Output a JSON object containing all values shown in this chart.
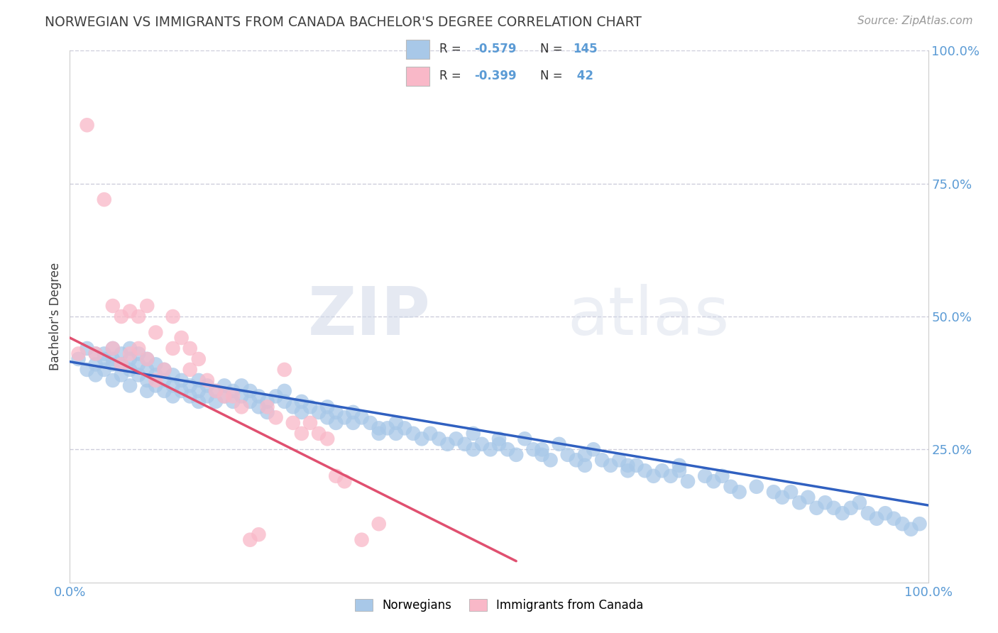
{
  "title": "NORWEGIAN VS IMMIGRANTS FROM CANADA BACHELOR'S DEGREE CORRELATION CHART",
  "source": "Source: ZipAtlas.com",
  "ylabel": "Bachelor's Degree",
  "legend_label1": "Norwegians",
  "legend_label2": "Immigrants from Canada",
  "watermark_zip": "ZIP",
  "watermark_atlas": "atlas",
  "blue_color": "#a8c8e8",
  "pink_color": "#f9b8c8",
  "line_blue": "#3060c0",
  "line_pink": "#e05070",
  "background": "#ffffff",
  "grid_color": "#c8c8d8",
  "title_color": "#404040",
  "axis_label_color": "#5b9bd5",
  "legend_text_color": "#333333",
  "source_color": "#999999",
  "xlim": [
    0.0,
    1.0
  ],
  "ylim": [
    0.0,
    1.0
  ],
  "yticks": [
    0.25,
    0.5,
    0.75,
    1.0
  ],
  "ytick_labels": [
    "25.0%",
    "50.0%",
    "75.0%",
    "100.0%"
  ],
  "xtick_positions": [
    0.0,
    1.0
  ],
  "xtick_labels": [
    "0.0%",
    "100.0%"
  ],
  "nor_x": [
    0.01,
    0.02,
    0.02,
    0.03,
    0.03,
    0.03,
    0.04,
    0.04,
    0.04,
    0.05,
    0.05,
    0.05,
    0.05,
    0.06,
    0.06,
    0.06,
    0.07,
    0.07,
    0.07,
    0.07,
    0.08,
    0.08,
    0.08,
    0.09,
    0.09,
    0.09,
    0.09,
    0.1,
    0.1,
    0.1,
    0.11,
    0.11,
    0.11,
    0.12,
    0.12,
    0.12,
    0.13,
    0.13,
    0.14,
    0.14,
    0.15,
    0.15,
    0.15,
    0.16,
    0.16,
    0.17,
    0.17,
    0.18,
    0.18,
    0.19,
    0.19,
    0.2,
    0.2,
    0.21,
    0.21,
    0.22,
    0.22,
    0.23,
    0.23,
    0.24,
    0.25,
    0.25,
    0.26,
    0.27,
    0.27,
    0.28,
    0.29,
    0.3,
    0.3,
    0.31,
    0.31,
    0.32,
    0.33,
    0.33,
    0.34,
    0.35,
    0.36,
    0.36,
    0.37,
    0.38,
    0.38,
    0.39,
    0.4,
    0.41,
    0.42,
    0.43,
    0.44,
    0.45,
    0.46,
    0.47,
    0.48,
    0.49,
    0.5,
    0.51,
    0.52,
    0.54,
    0.55,
    0.56,
    0.58,
    0.59,
    0.6,
    0.62,
    0.63,
    0.65,
    0.66,
    0.67,
    0.68,
    0.69,
    0.7,
    0.71,
    0.72,
    0.74,
    0.75,
    0.77,
    0.78,
    0.8,
    0.82,
    0.83,
    0.85,
    0.87,
    0.88,
    0.89,
    0.9,
    0.91,
    0.92,
    0.93,
    0.94,
    0.95,
    0.96,
    0.97,
    0.98,
    0.99,
    0.53,
    0.57,
    0.61,
    0.64,
    0.71,
    0.76,
    0.84,
    0.86,
    0.47,
    0.5,
    0.55,
    0.6,
    0.65
  ],
  "nor_y": [
    0.42,
    0.44,
    0.4,
    0.43,
    0.41,
    0.39,
    0.43,
    0.42,
    0.4,
    0.42,
    0.44,
    0.41,
    0.38,
    0.43,
    0.41,
    0.39,
    0.44,
    0.42,
    0.4,
    0.37,
    0.43,
    0.41,
    0.39,
    0.42,
    0.4,
    0.38,
    0.36,
    0.41,
    0.39,
    0.37,
    0.4,
    0.38,
    0.36,
    0.39,
    0.37,
    0.35,
    0.38,
    0.36,
    0.37,
    0.35,
    0.38,
    0.36,
    0.34,
    0.37,
    0.35,
    0.36,
    0.34,
    0.37,
    0.35,
    0.36,
    0.34,
    0.37,
    0.35,
    0.36,
    0.34,
    0.35,
    0.33,
    0.34,
    0.32,
    0.35,
    0.36,
    0.34,
    0.33,
    0.34,
    0.32,
    0.33,
    0.32,
    0.33,
    0.31,
    0.32,
    0.3,
    0.31,
    0.32,
    0.3,
    0.31,
    0.3,
    0.29,
    0.28,
    0.29,
    0.3,
    0.28,
    0.29,
    0.28,
    0.27,
    0.28,
    0.27,
    0.26,
    0.27,
    0.26,
    0.25,
    0.26,
    0.25,
    0.26,
    0.25,
    0.24,
    0.25,
    0.24,
    0.23,
    0.24,
    0.23,
    0.22,
    0.23,
    0.22,
    0.21,
    0.22,
    0.21,
    0.2,
    0.21,
    0.2,
    0.21,
    0.19,
    0.2,
    0.19,
    0.18,
    0.17,
    0.18,
    0.17,
    0.16,
    0.15,
    0.14,
    0.15,
    0.14,
    0.13,
    0.14,
    0.15,
    0.13,
    0.12,
    0.13,
    0.12,
    0.11,
    0.1,
    0.11,
    0.27,
    0.26,
    0.25,
    0.23,
    0.22,
    0.2,
    0.17,
    0.16,
    0.28,
    0.27,
    0.25,
    0.24,
    0.22
  ],
  "can_x": [
    0.01,
    0.02,
    0.03,
    0.04,
    0.05,
    0.05,
    0.06,
    0.06,
    0.07,
    0.07,
    0.08,
    0.08,
    0.09,
    0.09,
    0.1,
    0.1,
    0.11,
    0.12,
    0.12,
    0.13,
    0.14,
    0.14,
    0.15,
    0.16,
    0.17,
    0.18,
    0.19,
    0.2,
    0.21,
    0.22,
    0.23,
    0.24,
    0.25,
    0.26,
    0.27,
    0.28,
    0.29,
    0.3,
    0.31,
    0.32,
    0.34,
    0.36
  ],
  "can_y": [
    0.43,
    0.86,
    0.43,
    0.72,
    0.44,
    0.52,
    0.41,
    0.5,
    0.51,
    0.43,
    0.5,
    0.44,
    0.52,
    0.42,
    0.47,
    0.38,
    0.4,
    0.5,
    0.44,
    0.46,
    0.44,
    0.4,
    0.42,
    0.38,
    0.36,
    0.35,
    0.35,
    0.33,
    0.08,
    0.09,
    0.33,
    0.31,
    0.4,
    0.3,
    0.28,
    0.3,
    0.28,
    0.27,
    0.2,
    0.19,
    0.08,
    0.11
  ],
  "nor_line_x": [
    0.0,
    1.0
  ],
  "nor_line_y": [
    0.415,
    0.145
  ],
  "can_line_x": [
    0.0,
    0.52
  ],
  "can_line_y": [
    0.46,
    0.04
  ]
}
